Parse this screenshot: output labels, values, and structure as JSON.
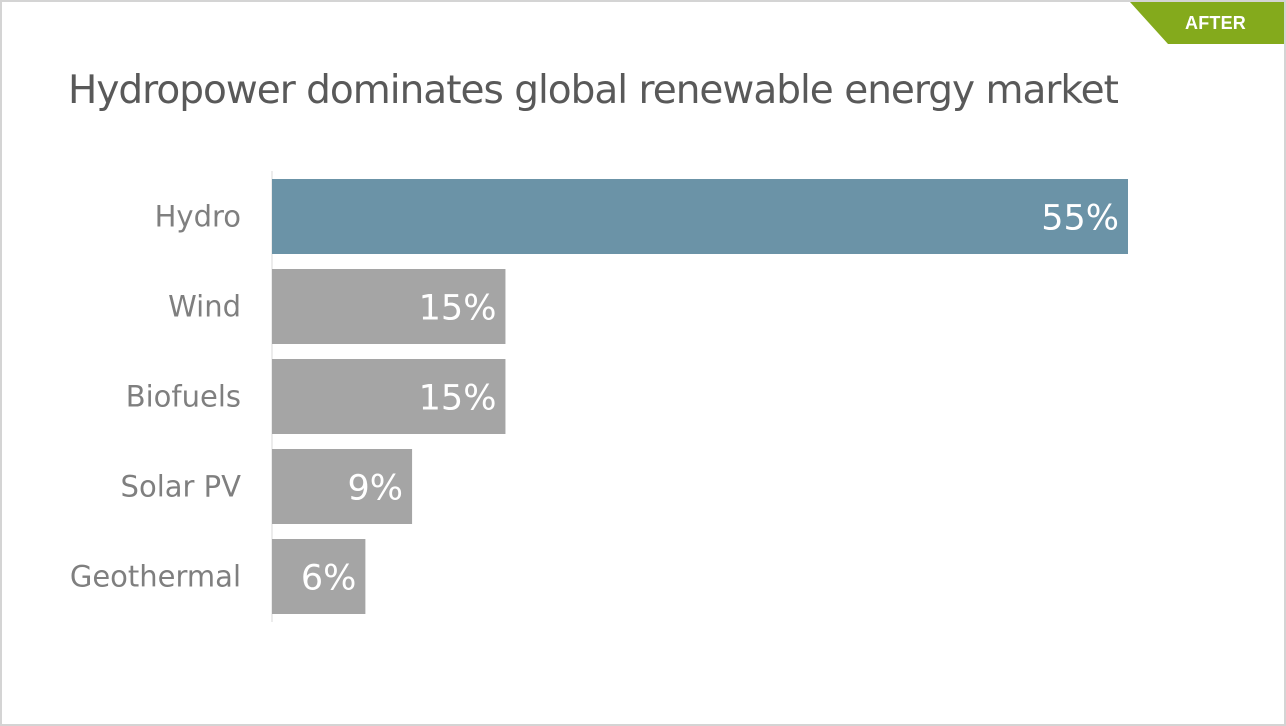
{
  "badge": {
    "label": "AFTER",
    "color": "#84aa1c"
  },
  "chart_data": {
    "type": "bar",
    "orientation": "horizontal",
    "title": "Hydropower dominates global renewable energy market",
    "categories": [
      "Hydro",
      "Wind",
      "Biofuels",
      "Solar PV",
      "Geothermal"
    ],
    "values": [
      55,
      15,
      15,
      9,
      6
    ],
    "data_labels": [
      "55%",
      "15%",
      "15%",
      "9%",
      "6%"
    ],
    "unit": "%",
    "xlim": [
      0,
      55
    ],
    "grid": false,
    "legend": "none",
    "colors": {
      "highlight": "#6b93a7",
      "default": "#a5a5a5",
      "label": "#ffffff",
      "category_text": "#7f7f7f",
      "axis_line": "#d9d9d9"
    },
    "highlight_index": 0
  }
}
